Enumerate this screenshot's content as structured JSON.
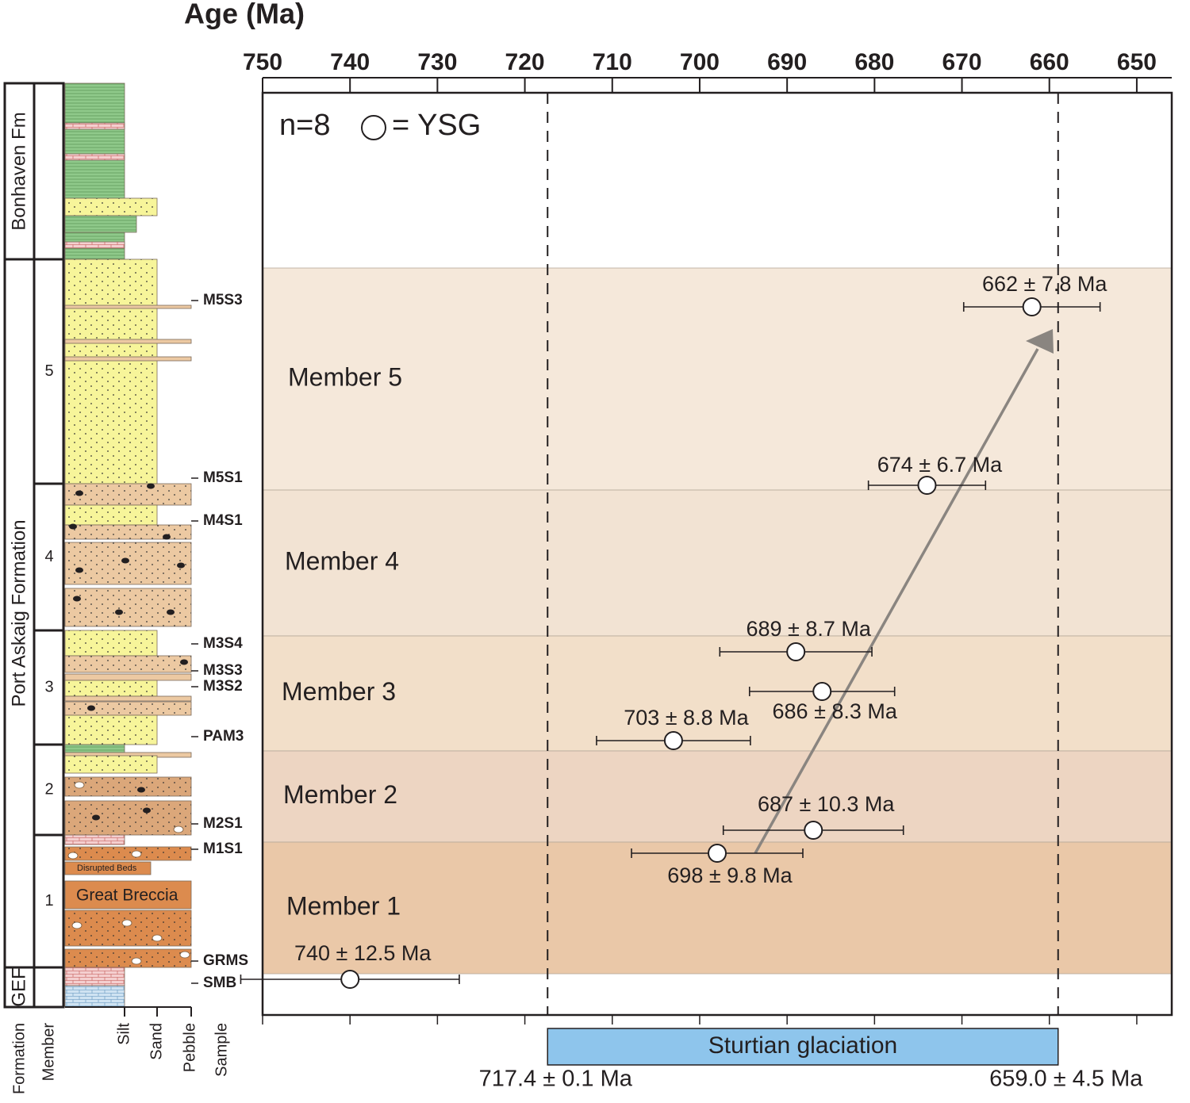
{
  "chart_data": {
    "type": "scatter",
    "title": "Age (Ma)",
    "xlim": [
      750,
      646
    ],
    "xticks": [
      750,
      740,
      730,
      720,
      710,
      700,
      690,
      680,
      670,
      660,
      650
    ],
    "legend_count": "n=8",
    "legend_label": "= YSG",
    "values": [
      662,
      674,
      689,
      686,
      703,
      687,
      698,
      740
    ],
    "errors": [
      7.8,
      6.7,
      8.7,
      8.3,
      8.8,
      10.3,
      9.8,
      12.5
    ],
    "value_labels": [
      "662 ± 7.8 Ma",
      "674 ± 6.7 Ma",
      "689 ± 8.7 Ma",
      "686 ± 8.3 Ma",
      "703 ± 8.8 Ma",
      "687 ± 10.3 Ma",
      "698 ± 9.8 Ma",
      "740 ± 12.5 Ma"
    ],
    "members": [
      "Member 5",
      "Member 4",
      "Member 3",
      "Member 2",
      "Member 1"
    ],
    "reference_lines": [
      {
        "value": 717.4,
        "label": "717.4 ± 0.1 Ma"
      },
      {
        "value": 659.0,
        "label": "659.0 ± 4.5 Ma"
      }
    ],
    "band_label": "Sturtian glaciation"
  },
  "column": {
    "formations": [
      "Bonhaven Fm",
      "Port Askaig Formation",
      "GEF"
    ],
    "members": [
      "5",
      "4",
      "3",
      "2",
      "1"
    ],
    "bed_labels": [
      "Disrupted Beds",
      "Great Breccia"
    ],
    "samples": [
      "M5S3",
      "M5S1",
      "M4S1",
      "M3S4",
      "M3S3",
      "M3S2",
      "PAM3",
      "M2S1",
      "M1S1",
      "GRMS",
      "SMB"
    ],
    "headers": [
      "Formation",
      "Member",
      "Silt",
      "Sand",
      "Pebble",
      "Sample"
    ]
  }
}
